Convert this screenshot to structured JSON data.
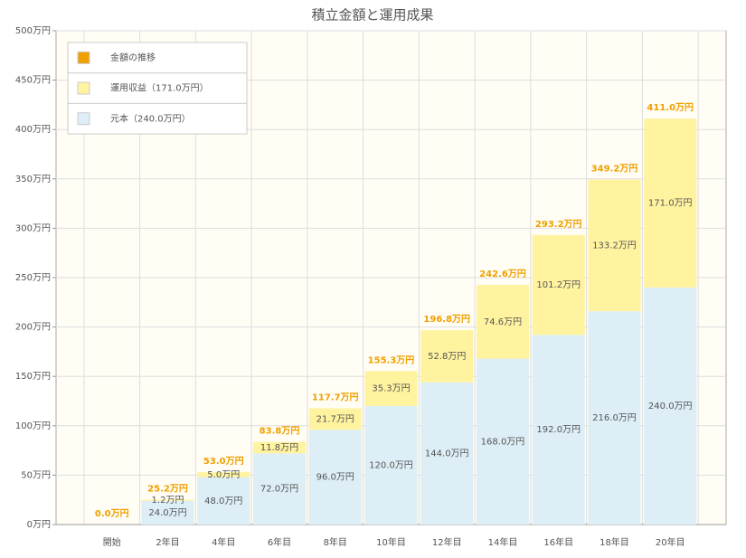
{
  "chart_data": {
    "type": "bar",
    "stacked": true,
    "title": "積立金額と運用成果",
    "categories": [
      "開始",
      "2年目",
      "4年目",
      "6年目",
      "8年目",
      "10年目",
      "12年目",
      "14年目",
      "16年目",
      "18年目",
      "20年目"
    ],
    "series": [
      {
        "name": "元本（240.0万円）",
        "type": "bar",
        "color": "#ddeef6",
        "values": [
          0,
          24,
          48,
          72,
          96,
          120,
          144,
          168,
          192,
          216,
          240
        ],
        "value_labels": [
          null,
          "24.0万円",
          "48.0万円",
          "72.0万円",
          "96.0万円",
          "120.0万円",
          "144.0万円",
          "168.0万円",
          "192.0万円",
          "216.0万円",
          "240.0万円"
        ]
      },
      {
        "name": "運用収益（171.0万円）",
        "type": "bar",
        "color": "#fff3a0",
        "values": [
          0,
          1.2,
          5.0,
          11.8,
          21.7,
          35.3,
          52.8,
          74.6,
          101.2,
          133.2,
          171.0
        ],
        "value_labels": [
          null,
          "1.2万円",
          "5.0万円",
          "11.8万円",
          "21.7万円",
          "35.3万円",
          "52.8万円",
          "74.6万円",
          "101.2万円",
          "133.2万円",
          "171.0万円"
        ]
      },
      {
        "name": "金額の推移",
        "type": "text",
        "color": "#f0a000",
        "values": [
          0.0,
          25.2,
          53.0,
          83.8,
          117.7,
          155.3,
          196.8,
          242.6,
          293.2,
          349.2,
          411.0
        ],
        "value_labels": [
          "0.0万円",
          "25.2万円",
          "53.0万円",
          "83.8万円",
          "117.7万円",
          "155.3万円",
          "196.8万円",
          "242.6万円",
          "293.2万円",
          "349.2万円",
          "411.0万円"
        ]
      }
    ],
    "ylim": [
      0,
      500
    ],
    "yticks": [
      {
        "value": 0,
        "label": "0万円"
      },
      {
        "value": 50,
        "label": "50万円"
      },
      {
        "value": 100,
        "label": "100万円"
      },
      {
        "value": 150,
        "label": "150万円"
      },
      {
        "value": 200,
        "label": "200万円"
      },
      {
        "value": 250,
        "label": "250万円"
      },
      {
        "value": 300,
        "label": "300万円"
      },
      {
        "value": 350,
        "label": "350万円"
      },
      {
        "value": 400,
        "label": "400万円"
      },
      {
        "value": 450,
        "label": "450万円"
      },
      {
        "value": 500,
        "label": "500万円"
      }
    ],
    "grid": true,
    "legend": "top-left"
  }
}
